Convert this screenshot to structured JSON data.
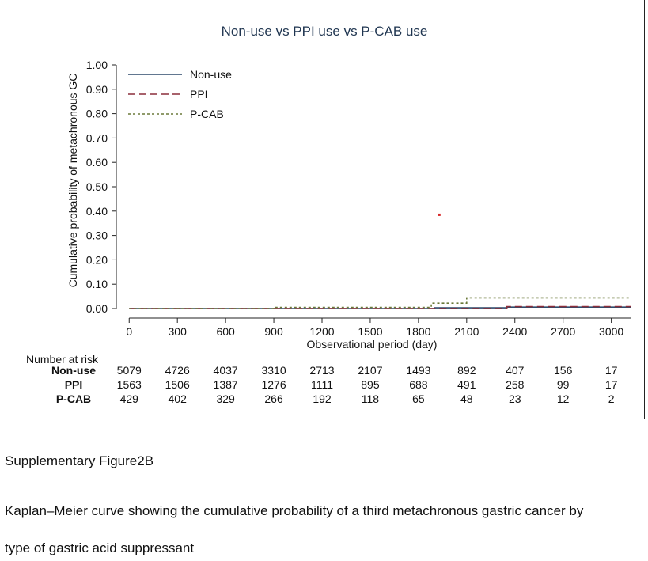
{
  "chart_data": {
    "type": "line",
    "title": "Non-use vs PPI use vs P-CAB use",
    "xlabel": "Observational period (day)",
    "ylabel": "Cumulative probability of metachronous GC",
    "xlim": [
      -80,
      3120
    ],
    "ylim": [
      0,
      1.0
    ],
    "xticks": [
      0,
      300,
      600,
      900,
      1200,
      1500,
      1800,
      2100,
      2400,
      2700,
      3000
    ],
    "yticks": [
      "0.00",
      "0.10",
      "0.20",
      "0.30",
      "0.40",
      "0.50",
      "0.60",
      "0.70",
      "0.80",
      "0.90",
      "1.00"
    ],
    "grid": false,
    "legend_position": "top-left",
    "series": [
      {
        "name": "Non-use",
        "color": "#2e4a6b",
        "dash": "solid",
        "points": [
          [
            0,
            0.0
          ],
          [
            1900,
            0.0
          ],
          [
            1900,
            0.003
          ],
          [
            2350,
            0.003
          ],
          [
            2350,
            0.006
          ],
          [
            3120,
            0.006
          ]
        ]
      },
      {
        "name": "PPI",
        "color": "#8b2e3b",
        "dash": "dashed",
        "points": [
          [
            0,
            0.0
          ],
          [
            2350,
            0.0
          ],
          [
            2350,
            0.008
          ],
          [
            3120,
            0.008
          ]
        ]
      },
      {
        "name": "P-CAB",
        "color": "#6b7a3a",
        "dash": "dotted",
        "points": [
          [
            0,
            0.0
          ],
          [
            900,
            0.0
          ],
          [
            900,
            0.005
          ],
          [
            1880,
            0.005
          ],
          [
            1880,
            0.022
          ],
          [
            2100,
            0.022
          ],
          [
            2100,
            0.044
          ],
          [
            3120,
            0.044
          ]
        ]
      }
    ],
    "risk_table": {
      "header": "Number at risk",
      "rows": [
        {
          "label": "Non-use",
          "values": [
            5079,
            4726,
            4037,
            3310,
            2713,
            2107,
            1493,
            892,
            407,
            156,
            17
          ]
        },
        {
          "label": "PPI",
          "values": [
            1563,
            1506,
            1387,
            1276,
            1111,
            895,
            688,
            491,
            258,
            99,
            17
          ]
        },
        {
          "label": "P-CAB",
          "values": [
            429,
            402,
            329,
            266,
            192,
            118,
            65,
            48,
            23,
            12,
            2
          ]
        }
      ]
    },
    "stray_mark": {
      "x": 1930,
      "y": 0.385,
      "color": "#d62728"
    }
  },
  "captions": {
    "figure_label": "Supplementary Figure2B",
    "description_line1": "Kaplan–Meier curve showing the cumulative probability of a third metachronous gastric cancer by",
    "description_line2": "type of gastric acid suppressant"
  }
}
